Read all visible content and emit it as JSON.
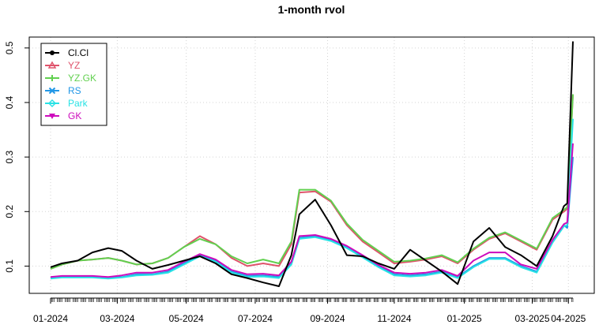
{
  "chart_data": {
    "type": "line",
    "title": "1-month rvol",
    "xlabel": "",
    "ylabel": "",
    "x_tick_labels": [
      "01-2024",
      "03-2024",
      "05-2024",
      "07-2024",
      "09-2024",
      "11-2024",
      "01-2025",
      "03-2025",
      "04-2025"
    ],
    "x_tick_dates": [
      "2024-01-02",
      "2024-03-01",
      "2024-05-01",
      "2024-07-01",
      "2024-09-03",
      "2024-11-01",
      "2025-01-02",
      "2025-03-03",
      "2025-04-04"
    ],
    "xlim": [
      "2024-01-02",
      "2025-04-08"
    ],
    "y_ticks": [
      0.1,
      0.2,
      0.3,
      0.4,
      0.5
    ],
    "ylim": [
      0.05,
      0.52
    ],
    "grid": true,
    "legend_position": "top-left",
    "series": [
      {
        "name": "Cl.Cl",
        "color": "#000000",
        "marker": "circle",
        "x": [
          "2024-01-02",
          "2024-01-12",
          "2024-01-26",
          "2024-02-08",
          "2024-02-22",
          "2024-03-05",
          "2024-03-18",
          "2024-04-01",
          "2024-04-15",
          "2024-04-29",
          "2024-05-13",
          "2024-05-27",
          "2024-06-10",
          "2024-06-24",
          "2024-07-08",
          "2024-07-22",
          "2024-08-02",
          "2024-08-09",
          "2024-08-23",
          "2024-09-06",
          "2024-09-20",
          "2024-10-04",
          "2024-10-18",
          "2024-11-01",
          "2024-11-15",
          "2024-11-29",
          "2024-12-13",
          "2024-12-27",
          "2025-01-10",
          "2025-01-24",
          "2025-02-07",
          "2025-02-21",
          "2025-03-07",
          "2025-03-21",
          "2025-03-31",
          "2025-04-03",
          "2025-04-08"
        ],
        "values": [
          0.098,
          0.105,
          0.11,
          0.125,
          0.133,
          0.128,
          0.11,
          0.095,
          0.102,
          0.11,
          0.118,
          0.105,
          0.085,
          0.078,
          0.07,
          0.063,
          0.12,
          0.195,
          0.222,
          0.175,
          0.12,
          0.118,
          0.105,
          0.095,
          0.13,
          0.11,
          0.09,
          0.067,
          0.145,
          0.17,
          0.135,
          0.12,
          0.1,
          0.155,
          0.21,
          0.215,
          0.512
        ]
      },
      {
        "name": "YZ",
        "color": "#DF536B",
        "marker": "triangle",
        "x": [
          "2024-01-02",
          "2024-01-12",
          "2024-01-26",
          "2024-02-08",
          "2024-02-22",
          "2024-03-05",
          "2024-03-18",
          "2024-04-01",
          "2024-04-15",
          "2024-04-29",
          "2024-05-13",
          "2024-05-27",
          "2024-06-10",
          "2024-06-24",
          "2024-07-08",
          "2024-07-22",
          "2024-08-02",
          "2024-08-09",
          "2024-08-23",
          "2024-09-06",
          "2024-09-20",
          "2024-10-04",
          "2024-10-18",
          "2024-11-01",
          "2024-11-15",
          "2024-11-29",
          "2024-12-13",
          "2024-12-27",
          "2025-01-10",
          "2025-01-24",
          "2025-02-07",
          "2025-02-21",
          "2025-03-07",
          "2025-03-21",
          "2025-03-31",
          "2025-04-03",
          "2025-04-08"
        ],
        "values": [
          0.095,
          0.103,
          0.11,
          0.112,
          0.115,
          0.11,
          0.103,
          0.105,
          0.115,
          0.135,
          0.155,
          0.14,
          0.115,
          0.1,
          0.105,
          0.1,
          0.14,
          0.235,
          0.237,
          0.218,
          0.175,
          0.145,
          0.125,
          0.105,
          0.108,
          0.112,
          0.118,
          0.105,
          0.13,
          0.15,
          0.16,
          0.145,
          0.13,
          0.185,
          0.2,
          0.205,
          0.415
        ]
      },
      {
        "name": "YZ.GK",
        "color": "#61D04F",
        "marker": "plus",
        "x": [
          "2024-01-02",
          "2024-01-12",
          "2024-01-26",
          "2024-02-08",
          "2024-02-22",
          "2024-03-05",
          "2024-03-18",
          "2024-04-01",
          "2024-04-15",
          "2024-04-29",
          "2024-05-13",
          "2024-05-27",
          "2024-06-10",
          "2024-06-24",
          "2024-07-08",
          "2024-07-22",
          "2024-08-02",
          "2024-08-09",
          "2024-08-23",
          "2024-09-06",
          "2024-09-20",
          "2024-10-04",
          "2024-10-18",
          "2024-11-01",
          "2024-11-15",
          "2024-11-29",
          "2024-12-13",
          "2024-12-27",
          "2025-01-10",
          "2025-01-24",
          "2025-02-07",
          "2025-02-21",
          "2025-03-07",
          "2025-03-21",
          "2025-03-31",
          "2025-04-03",
          "2025-04-08"
        ],
        "values": [
          0.095,
          0.103,
          0.11,
          0.112,
          0.115,
          0.11,
          0.103,
          0.105,
          0.115,
          0.135,
          0.15,
          0.14,
          0.118,
          0.105,
          0.112,
          0.105,
          0.145,
          0.24,
          0.24,
          0.22,
          0.178,
          0.148,
          0.128,
          0.108,
          0.11,
          0.114,
          0.12,
          0.107,
          0.132,
          0.152,
          0.162,
          0.147,
          0.132,
          0.188,
          0.203,
          0.208,
          0.415
        ]
      },
      {
        "name": "RS",
        "color": "#2297E6",
        "marker": "cross",
        "x": [
          "2024-01-02",
          "2024-01-12",
          "2024-01-26",
          "2024-02-08",
          "2024-02-22",
          "2024-03-05",
          "2024-03-18",
          "2024-04-01",
          "2024-04-15",
          "2024-04-29",
          "2024-05-13",
          "2024-05-27",
          "2024-06-10",
          "2024-06-24",
          "2024-07-08",
          "2024-07-22",
          "2024-08-02",
          "2024-08-09",
          "2024-08-23",
          "2024-09-06",
          "2024-09-20",
          "2024-10-04",
          "2024-10-18",
          "2024-11-01",
          "2024-11-15",
          "2024-11-29",
          "2024-12-13",
          "2024-12-27",
          "2025-01-10",
          "2025-01-24",
          "2025-02-07",
          "2025-02-21",
          "2025-03-07",
          "2025-03-21",
          "2025-03-31",
          "2025-04-03",
          "2025-04-08"
        ],
        "values": [
          0.078,
          0.08,
          0.08,
          0.08,
          0.078,
          0.08,
          0.085,
          0.085,
          0.09,
          0.105,
          0.12,
          0.11,
          0.09,
          0.082,
          0.083,
          0.08,
          0.105,
          0.152,
          0.155,
          0.148,
          0.135,
          0.118,
          0.1,
          0.085,
          0.083,
          0.085,
          0.09,
          0.08,
          0.1,
          0.115,
          0.115,
          0.1,
          0.09,
          0.145,
          0.175,
          0.17,
          0.3
        ]
      },
      {
        "name": "Park",
        "color": "#28E2E5",
        "marker": "diamond",
        "x": [
          "2024-01-02",
          "2024-01-12",
          "2024-01-26",
          "2024-02-08",
          "2024-02-22",
          "2024-03-05",
          "2024-03-18",
          "2024-04-01",
          "2024-04-15",
          "2024-04-29",
          "2024-05-13",
          "2024-05-27",
          "2024-06-10",
          "2024-06-24",
          "2024-07-08",
          "2024-07-22",
          "2024-08-02",
          "2024-08-09",
          "2024-08-23",
          "2024-09-06",
          "2024-09-20",
          "2024-10-04",
          "2024-10-18",
          "2024-11-01",
          "2024-11-15",
          "2024-11-29",
          "2024-12-13",
          "2024-12-27",
          "2025-01-10",
          "2025-01-24",
          "2025-02-07",
          "2025-02-21",
          "2025-03-07",
          "2025-03-21",
          "2025-03-31",
          "2025-04-03",
          "2025-04-08"
        ],
        "values": [
          0.077,
          0.079,
          0.079,
          0.079,
          0.077,
          0.079,
          0.083,
          0.084,
          0.088,
          0.103,
          0.118,
          0.108,
          0.088,
          0.08,
          0.081,
          0.078,
          0.103,
          0.15,
          0.153,
          0.146,
          0.133,
          0.116,
          0.098,
          0.083,
          0.081,
          0.083,
          0.088,
          0.078,
          0.098,
          0.113,
          0.113,
          0.098,
          0.088,
          0.143,
          0.173,
          0.175,
          0.37
        ]
      },
      {
        "name": "GK",
        "color": "#CD0BBC",
        "marker": "triangle-down",
        "x": [
          "2024-01-02",
          "2024-01-12",
          "2024-01-26",
          "2024-02-08",
          "2024-02-22",
          "2024-03-05",
          "2024-03-18",
          "2024-04-01",
          "2024-04-15",
          "2024-04-29",
          "2024-05-13",
          "2024-05-27",
          "2024-06-10",
          "2024-06-24",
          "2024-07-08",
          "2024-07-22",
          "2024-08-02",
          "2024-08-09",
          "2024-08-23",
          "2024-09-06",
          "2024-09-20",
          "2024-10-04",
          "2024-10-18",
          "2024-11-01",
          "2024-11-15",
          "2024-11-29",
          "2024-12-13",
          "2024-12-27",
          "2025-01-10",
          "2025-01-24",
          "2025-02-07",
          "2025-02-21",
          "2025-03-07",
          "2025-03-21",
          "2025-03-31",
          "2025-04-03",
          "2025-04-08"
        ],
        "values": [
          0.08,
          0.082,
          0.082,
          0.082,
          0.08,
          0.083,
          0.088,
          0.088,
          0.093,
          0.108,
          0.122,
          0.112,
          0.093,
          0.085,
          0.086,
          0.083,
          0.108,
          0.155,
          0.157,
          0.15,
          0.137,
          0.12,
          0.102,
          0.088,
          0.086,
          0.088,
          0.093,
          0.082,
          0.11,
          0.125,
          0.125,
          0.103,
          0.095,
          0.148,
          0.177,
          0.18,
          0.325
        ]
      }
    ]
  }
}
